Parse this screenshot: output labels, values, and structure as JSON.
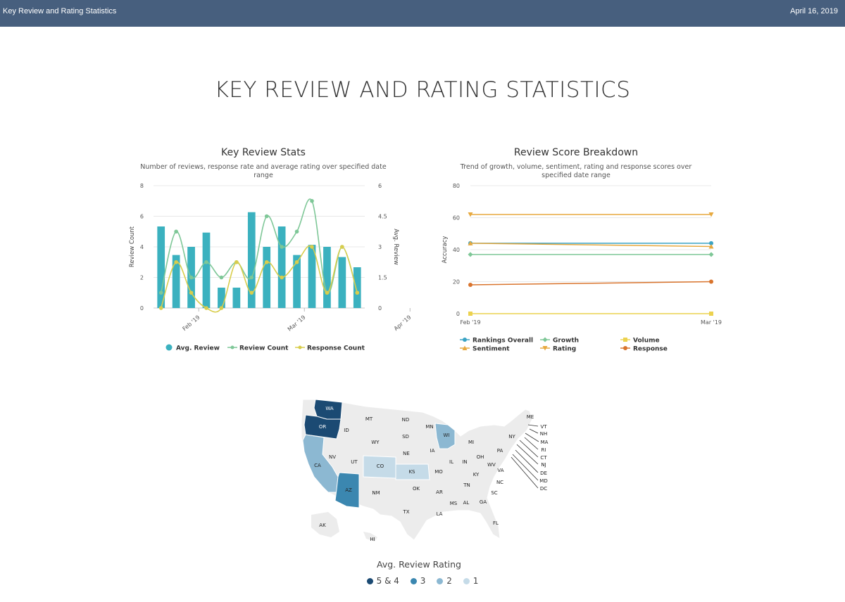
{
  "header": {
    "title": "Key Review and Rating Statistics",
    "date": "April 16, 2019"
  },
  "page": {
    "title": "KEY REVIEW AND RATING STATISTICS"
  },
  "colors": {
    "header_bg": "#475f7e",
    "teal": "#3bb1bf",
    "green": "#7ec797",
    "yellow": "#d8cd4c",
    "gold": "#e7a93f",
    "orange": "#d9742d",
    "blue": "#3aa3c4",
    "cream": "#ecd24f"
  },
  "chart_data": [
    {
      "type": "bar",
      "title": "Key Review Stats",
      "subtitle_lines": [
        "Number of reviews, response rate and average rating over specified date",
        "range"
      ],
      "ylabel": "Review Count",
      "y2label": "Avg. Review",
      "ylim": [
        0,
        8
      ],
      "y2lim": [
        0,
        6
      ],
      "yticks": [
        "0",
        "2",
        "4",
        "6",
        "8"
      ],
      "y2ticks": [
        "0",
        "1.5",
        "3",
        "4.5",
        "6"
      ],
      "xtick_labels": [
        "Feb '19",
        "Mar '19",
        "Apr '19"
      ],
      "xtick_positions": [
        3,
        10,
        17
      ],
      "legend": [
        "Avg. Review",
        "Review Count",
        "Response Count"
      ],
      "bars_series": "Avg. Review",
      "avg_review": [
        4.0,
        2.6,
        3.0,
        3.7,
        1.0,
        1.0,
        4.7,
        3.0,
        4.0,
        2.6,
        3.1,
        3.0,
        2.5,
        2.0
      ],
      "review_count": [
        1,
        5,
        2,
        3,
        2,
        3,
        2,
        6,
        4,
        5,
        7,
        1,
        4,
        1
      ],
      "response_count": [
        0,
        3,
        1,
        0,
        0,
        3,
        1,
        3,
        2,
        3,
        4,
        1,
        4,
        1
      ]
    },
    {
      "type": "line",
      "title": "Review Score Breakdown",
      "subtitle_lines": [
        "Trend of growth, volume, sentiment, rating and response scores over",
        "specified date range"
      ],
      "ylabel": "Accuracy",
      "ylim": [
        0,
        80
      ],
      "yticks": [
        "0",
        "20",
        "40",
        "60",
        "80"
      ],
      "categories": [
        "Feb '19",
        "Mar '19"
      ],
      "series": [
        {
          "name": "Rankings Overall",
          "values": [
            44,
            44
          ]
        },
        {
          "name": "Growth",
          "values": [
            37,
            37
          ]
        },
        {
          "name": "Volume",
          "values": [
            0,
            0
          ]
        },
        {
          "name": "Sentiment",
          "values": [
            44,
            42
          ]
        },
        {
          "name": "Rating",
          "values": [
            62,
            62
          ]
        },
        {
          "name": "Response",
          "values": [
            18,
            20
          ]
        }
      ]
    },
    {
      "type": "heatmap",
      "title": "Avg. Review Rating",
      "legend": [
        "5 & 4",
        "3",
        "2",
        "1"
      ],
      "highlighted": {
        "WA": "5 & 4",
        "OR": "5 & 4",
        "AZ": "3",
        "CA": "2",
        "WI": "2",
        "CO": "1",
        "KS": "1"
      },
      "state_labels": [
        "WA",
        "OR",
        "ID",
        "MT",
        "ND",
        "MN",
        "WI",
        "MI",
        "ME",
        "VT",
        "NH",
        "MA",
        "RI",
        "CT",
        "NJ",
        "DE",
        "MD",
        "DC",
        "NY",
        "PA",
        "OH",
        "IN",
        "IL",
        "IA",
        "SD",
        "WY",
        "NE",
        "NV",
        "UT",
        "CO",
        "KS",
        "MO",
        "KY",
        "WV",
        "VA",
        "NC",
        "TN",
        "SC",
        "GA",
        "AL",
        "MS",
        "AR",
        "OK",
        "LA",
        "TX",
        "NM",
        "AZ",
        "CA",
        "AK",
        "HI",
        "FL"
      ]
    }
  ]
}
